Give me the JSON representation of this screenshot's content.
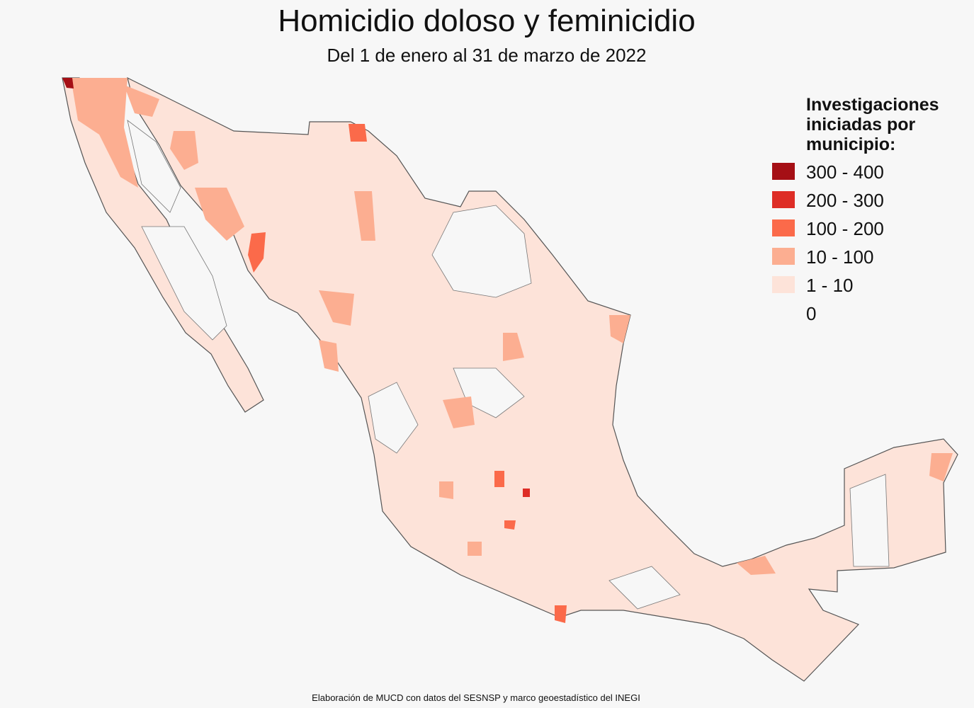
{
  "header": {
    "title": "Homicidio doloso y feminicidio",
    "subtitle": "Del 1 de enero al 31 de marzo de 2022"
  },
  "legend": {
    "title_lines": [
      "Investigaciones",
      "iniciadas por",
      "municipio:"
    ],
    "items": [
      {
        "label": "300 - 400",
        "color": "#a50f15"
      },
      {
        "label": "200 - 300",
        "color": "#de2d26"
      },
      {
        "label": "100 - 200",
        "color": "#fb6a4a"
      },
      {
        "label": "10 - 100",
        "color": "#fcae91"
      },
      {
        "label": "1 - 10",
        "color": "#fde3d9"
      },
      {
        "label": "0"
      }
    ]
  },
  "source": "Elaboración de MUCD con datos del SESNSP y marco geoestadístico del INEGI"
}
